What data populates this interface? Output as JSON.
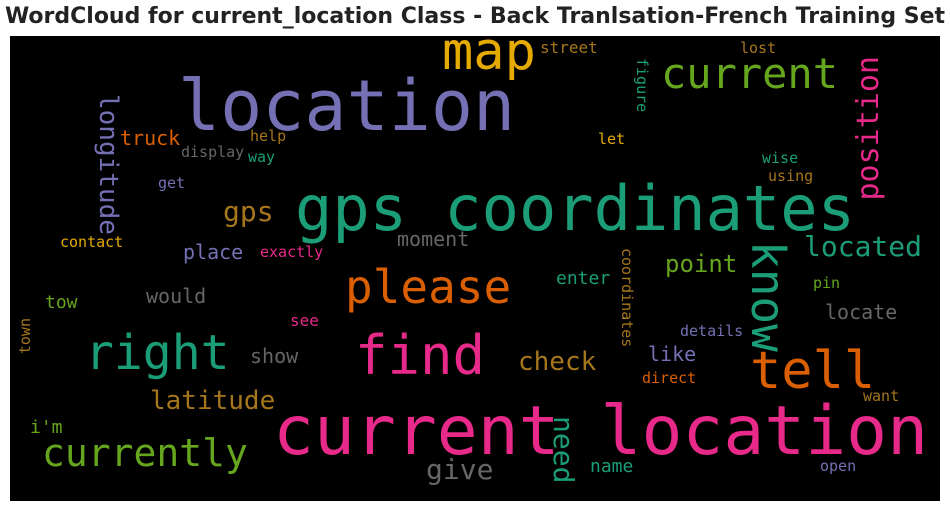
{
  "chart_data": {
    "type": "wordcloud",
    "title": "WordCloud for current_location Class - Back Tranlsation-French Training Set",
    "background": "#000000",
    "palette": [
      "#1b9e77",
      "#d95f02",
      "#7570b3",
      "#e7298a",
      "#66a61e",
      "#e6ab02",
      "#a6761d",
      "#666666"
    ],
    "words": [
      {
        "text": "current location",
        "color": "#e7298a"
      },
      {
        "text": "gps coordinates",
        "color": "#1b9e77"
      },
      {
        "text": "location",
        "color": "#7570b3"
      },
      {
        "text": "map",
        "color": "#e6ab02"
      },
      {
        "text": "current",
        "color": "#66a61e"
      },
      {
        "text": "please",
        "color": "#d95f02"
      },
      {
        "text": "find",
        "color": "#e7298a"
      },
      {
        "text": "right",
        "color": "#1b9e77"
      },
      {
        "text": "tell",
        "color": "#d95f02"
      },
      {
        "text": "know",
        "color": "#1b9e77"
      },
      {
        "text": "currently",
        "color": "#66a61e"
      },
      {
        "text": "position",
        "color": "#e7298a"
      },
      {
        "text": "located",
        "color": "#1b9e77"
      },
      {
        "text": "longitude",
        "color": "#7570b3"
      },
      {
        "text": "gps",
        "color": "#a6761d"
      },
      {
        "text": "latitude",
        "color": "#a6761d"
      },
      {
        "text": "check",
        "color": "#a6761d"
      },
      {
        "text": "give",
        "color": "#666666"
      },
      {
        "text": "need",
        "color": "#1b9e77"
      },
      {
        "text": "point",
        "color": "#66a61e"
      },
      {
        "text": "moment",
        "color": "#666666"
      },
      {
        "text": "place",
        "color": "#7570b3"
      },
      {
        "text": "truck",
        "color": "#d95f02"
      },
      {
        "text": "would",
        "color": "#666666"
      },
      {
        "text": "show",
        "color": "#666666"
      },
      {
        "text": "locate",
        "color": "#666666"
      },
      {
        "text": "like",
        "color": "#7570b3"
      },
      {
        "text": "i'm",
        "color": "#66a61e"
      },
      {
        "text": "tow",
        "color": "#66a61e"
      },
      {
        "text": "enter",
        "color": "#1b9e77"
      },
      {
        "text": "name",
        "color": "#1b9e77"
      },
      {
        "text": "street",
        "color": "#a6761d"
      },
      {
        "text": "see",
        "color": "#e7298a"
      },
      {
        "text": "coordinates",
        "color": "#a6761d"
      },
      {
        "text": "figure",
        "color": "#1b9e77"
      },
      {
        "text": "display",
        "color": "#666666"
      },
      {
        "text": "exactly",
        "color": "#e7298a"
      },
      {
        "text": "contact",
        "color": "#e6ab02"
      },
      {
        "text": "wise",
        "color": "#1b9e77"
      },
      {
        "text": "using",
        "color": "#a6761d"
      },
      {
        "text": "details",
        "color": "#7570b3"
      },
      {
        "text": "help",
        "color": "#a6761d"
      },
      {
        "text": "way",
        "color": "#1b9e77"
      },
      {
        "text": "let",
        "color": "#e6ab02"
      },
      {
        "text": "get",
        "color": "#7570b3"
      },
      {
        "text": "lost",
        "color": "#a6761d"
      },
      {
        "text": "pin",
        "color": "#66a61e"
      },
      {
        "text": "direct",
        "color": "#d95f02"
      },
      {
        "text": "want",
        "color": "#a6761d"
      },
      {
        "text": "open",
        "color": "#7570b3"
      },
      {
        "text": "town",
        "color": "#a6761d"
      }
    ]
  }
}
